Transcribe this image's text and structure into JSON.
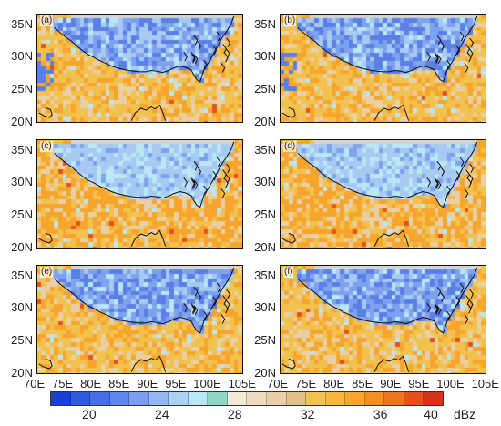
{
  "panels": [
    {
      "label": "(a)",
      "yticks": [
        "35N",
        "30N",
        "25N",
        "20N"
      ],
      "variant": 0
    },
    {
      "label": "(b)",
      "yticks": [
        "35N",
        "30N",
        "25N",
        "20N"
      ],
      "variant": 1
    },
    {
      "label": "(c)",
      "yticks": [
        "35N",
        "30N",
        "25N",
        "20N"
      ],
      "variant": 2
    },
    {
      "label": "(d)",
      "yticks": [
        "35N",
        "30N",
        "25N",
        "20N"
      ],
      "variant": 3
    },
    {
      "label": "(e)",
      "yticks": [
        "35N",
        "30N",
        "25N",
        "20N"
      ],
      "variant": 4
    },
    {
      "label": "(f)",
      "yticks": [
        "35N",
        "30N",
        "25N",
        "20N"
      ],
      "variant": 5
    }
  ],
  "xticks": [
    "70E",
    "75E",
    "80E",
    "85E",
    "90E",
    "95E",
    "100E",
    "105E"
  ],
  "colorbar": {
    "colors": [
      "#1a3fd4",
      "#2d5ae0",
      "#4670e8",
      "#5f86ec",
      "#7b9ff0",
      "#94b8f4",
      "#a9d2f5",
      "#b8e8f5",
      "#8fd8c8",
      "#f2ead6",
      "#eedcbe",
      "#e9cfa6",
      "#e2bf88",
      "#f2c24e",
      "#f6b73a",
      "#f7a52c",
      "#f4901f",
      "#ef7620",
      "#e4521a",
      "#d73318"
    ],
    "tick_labels": [
      "20",
      "24",
      "28",
      "32",
      "36",
      "40"
    ],
    "unit": "dBz"
  },
  "map_colors": {
    "blue_dark": "#5a7fe6",
    "blue_mid": "#7ea3ee",
    "blue_light": "#a8c9f2",
    "cyan": "#b8e8f5",
    "tan": "#e9cfa6",
    "yellow": "#f2c24e",
    "orange": "#f7a52c",
    "red": "#e4521a",
    "no_data": "#d4d4d4"
  }
}
